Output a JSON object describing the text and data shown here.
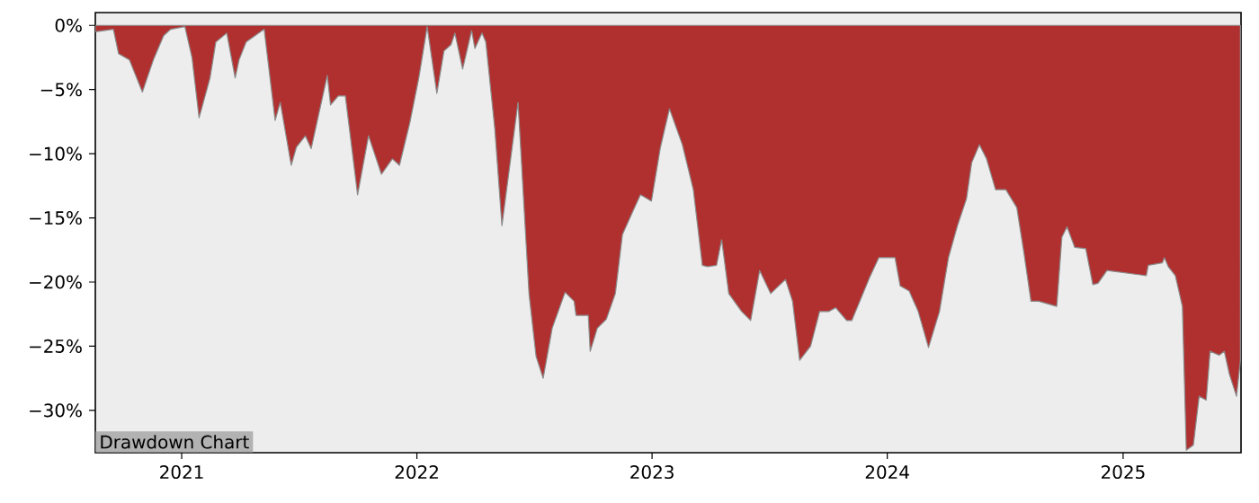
{
  "chart_data": {
    "type": "area",
    "title": "Drawdown Chart",
    "x": [
      "2020-08-20",
      "2020-09-17",
      "2020-09-25",
      "2020-10-12",
      "2020-11-01",
      "2020-11-18",
      "2020-12-04",
      "2020-12-15",
      "2021-01-06",
      "2021-01-17",
      "2021-01-28",
      "2021-02-14",
      "2021-02-23",
      "2021-03-12",
      "2021-03-25",
      "2021-03-31",
      "2021-04-11",
      "2021-05-09",
      "2021-05-26",
      "2021-06-03",
      "2021-06-20",
      "2021-06-28",
      "2021-07-12",
      "2021-07-21",
      "2021-08-15",
      "2021-08-20",
      "2021-09-01",
      "2021-09-12",
      "2021-10-01",
      "2021-10-18",
      "2021-11-07",
      "2021-11-24",
      "2021-12-05",
      "2021-12-21",
      "2022-01-04",
      "2022-01-17",
      "2022-02-01",
      "2022-02-12",
      "2022-02-23",
      "2022-03-01",
      "2022-03-13",
      "2022-03-27",
      "2022-04-01",
      "2022-04-12",
      "2022-04-18",
      "2022-05-02",
      "2022-05-13",
      "2022-06-07",
      "2022-06-24",
      "2022-07-05",
      "2022-07-16",
      "2022-07-30",
      "2022-08-19",
      "2022-09-02",
      "2022-09-05",
      "2022-09-24",
      "2022-09-27",
      "2022-10-08",
      "2022-10-22",
      "2022-11-05",
      "2022-11-16",
      "2022-12-03",
      "2022-12-14",
      "2022-12-31",
      "2023-01-14",
      "2023-01-28",
      "2023-02-17",
      "2023-03-06",
      "2023-03-20",
      "2023-03-28",
      "2023-04-11",
      "2023-04-19",
      "2023-04-30",
      "2023-05-20",
      "2023-06-03",
      "2023-06-17",
      "2023-07-04",
      "2023-07-27",
      "2023-08-07",
      "2023-08-18",
      "2023-09-04",
      "2023-09-18",
      "2023-10-02",
      "2023-10-13",
      "2023-10-30",
      "2023-11-07",
      "2023-12-05",
      "2023-12-19",
      "2024-01-13",
      "2024-01-21",
      "2024-02-04",
      "2024-02-18",
      "2024-03-05",
      "2024-03-22",
      "2024-04-05",
      "2024-04-19",
      "2024-05-03",
      "2024-05-11",
      "2024-05-23",
      "2024-06-03",
      "2024-06-17",
      "2024-07-03",
      "2024-07-20",
      "2024-07-31",
      "2024-08-11",
      "2024-08-23",
      "2024-09-20",
      "2024-09-28",
      "2024-10-06",
      "2024-10-18",
      "2024-11-04",
      "2024-11-15",
      "2024-11-23",
      "2024-12-07",
      "2025-02-06",
      "2025-02-09",
      "2025-03-03",
      "2025-03-06",
      "2025-03-12",
      "2025-03-23",
      "2025-04-03",
      "2025-04-09",
      "2025-04-20",
      "2025-04-29",
      "2025-05-10",
      "2025-05-16",
      "2025-05-30",
      "2025-06-07",
      "2025-06-15",
      "2025-06-26",
      "2025-07-02"
    ],
    "values": [
      -0.5,
      -0.3,
      -2.2,
      -2.7,
      -5.2,
      -2.7,
      -0.8,
      -0.3,
      -0.1,
      -2.5,
      -7.2,
      -4.1,
      -1.3,
      -0.6,
      -4.1,
      -2.7,
      -1.3,
      -0.3,
      -7.4,
      -6.0,
      -10.9,
      -9.5,
      -8.6,
      -9.6,
      -3.9,
      -6.2,
      -5.5,
      -5.5,
      -13.2,
      -8.6,
      -11.6,
      -10.4,
      -10.9,
      -7.6,
      -4.1,
      -0.1,
      -5.3,
      -2.0,
      -1.5,
      -0.6,
      -3.4,
      -0.4,
      -1.8,
      -0.6,
      -1.3,
      -8.1,
      -15.6,
      -6.0,
      -20.9,
      -25.8,
      -27.5,
      -23.6,
      -20.8,
      -21.5,
      -22.6,
      -22.6,
      -25.4,
      -23.6,
      -22.9,
      -20.9,
      -16.3,
      -14.4,
      -13.2,
      -13.7,
      -9.5,
      -6.5,
      -9.3,
      -12.8,
      -18.7,
      -18.8,
      -18.7,
      -16.7,
      -20.9,
      -22.3,
      -23.0,
      -19.1,
      -20.9,
      -19.8,
      -21.5,
      -26.1,
      -25.0,
      -22.3,
      -22.3,
      -22.0,
      -23.0,
      -23.0,
      -19.6,
      -18.1,
      -18.1,
      -20.3,
      -20.7,
      -22.3,
      -25.1,
      -22.3,
      -18.1,
      -15.6,
      -13.5,
      -10.7,
      -9.3,
      -10.4,
      -12.8,
      -12.8,
      -14.2,
      -17.7,
      -21.5,
      -21.5,
      -21.9,
      -16.5,
      -15.7,
      -17.3,
      -17.4,
      -20.2,
      -20.1,
      -19.1,
      -19.5,
      -18.7,
      -18.5,
      -18.1,
      -18.8,
      -19.5,
      -21.9,
      -33.1,
      -32.7,
      -28.9,
      -29.2,
      -25.4,
      -25.7,
      -25.4,
      -27.2,
      -28.9,
      -26.1
    ],
    "color": "#b03030",
    "xlim": [
      "2020-08-20",
      "2025-07-03"
    ],
    "xticks": [
      "2021",
      "2022",
      "2023",
      "2024",
      "2025"
    ],
    "ylim": [
      -33.3,
      1
    ],
    "yticks": [
      {
        "value": 0,
        "label": "0%"
      },
      {
        "value": -5,
        "label": "−5%"
      },
      {
        "value": -10,
        "label": "−10%"
      },
      {
        "value": -15,
        "label": "−15%"
      },
      {
        "value": -20,
        "label": "−20%"
      },
      {
        "value": -25,
        "label": "−25%"
      },
      {
        "value": -30,
        "label": "−30%"
      }
    ]
  }
}
